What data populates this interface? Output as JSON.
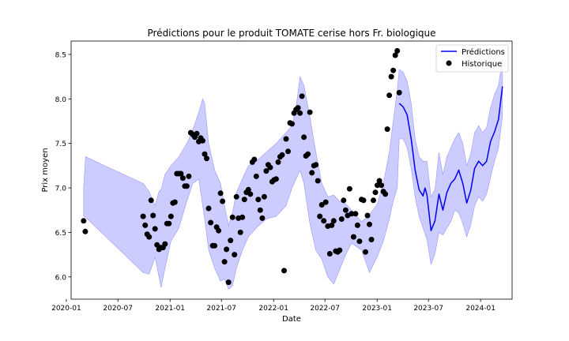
{
  "chart_data": {
    "type": "line",
    "title": "Prédictions pour le produit TOMATE cerise hors Fr. biologique",
    "xlabel": "Date",
    "ylabel": "Prix moyen",
    "xlim": [
      "2020-01-18",
      "2024-04-21"
    ],
    "ylim": [
      5.75,
      8.65
    ],
    "x_ticks": [
      "2020-01-01",
      "2020-07-01",
      "2021-01-01",
      "2021-07-01",
      "2022-01-01",
      "2022-07-01",
      "2023-01-01",
      "2023-07-01",
      "2024-01-01"
    ],
    "x_tick_labels": [
      "2020-01",
      "2020-07",
      "2021-01",
      "2021-07",
      "2022-01",
      "2022-07",
      "2023-01",
      "2023-07",
      "2024-01"
    ],
    "y_ticks": [
      6.0,
      6.5,
      7.0,
      7.5,
      8.0,
      8.5
    ],
    "y_tick_labels": [
      "6.0",
      "6.5",
      "7.0",
      "7.5",
      "8.0",
      "8.5"
    ],
    "grid": false,
    "legend": {
      "position": "top-right",
      "entries": [
        {
          "label": "Prédictions",
          "marker": "line",
          "color": "#0000ee"
        },
        {
          "label": "Historique",
          "marker": "dot",
          "color": "#000000"
        }
      ]
    },
    "colors": {
      "prediction": "#0000ee",
      "band": "#9999ff",
      "history": "#000000"
    },
    "series": [
      {
        "name": "Historique",
        "kind": "scatter",
        "x": [
          "2020-03-02",
          "2020-03-08",
          "2020-09-28",
          "2020-10-05",
          "2020-10-12",
          "2020-10-19",
          "2020-10-26",
          "2020-11-02",
          "2020-11-09",
          "2020-11-16",
          "2020-11-23",
          "2020-11-30",
          "2020-12-07",
          "2020-12-14",
          "2020-12-21",
          "2020-12-28",
          "2021-01-04",
          "2021-01-11",
          "2021-01-18",
          "2021-01-25",
          "2021-02-01",
          "2021-02-08",
          "2021-02-15",
          "2021-02-22",
          "2021-03-01",
          "2021-03-08",
          "2021-03-15",
          "2021-03-22",
          "2021-03-29",
          "2021-04-05",
          "2021-04-12",
          "2021-04-19",
          "2021-04-26",
          "2021-05-03",
          "2021-05-10",
          "2021-05-17",
          "2021-05-24",
          "2021-05-31",
          "2021-06-07",
          "2021-06-14",
          "2021-06-21",
          "2021-06-28",
          "2021-07-05",
          "2021-07-12",
          "2021-07-19",
          "2021-07-26",
          "2021-08-02",
          "2021-08-09",
          "2021-08-16",
          "2021-08-23",
          "2021-08-30",
          "2021-09-06",
          "2021-09-13",
          "2021-09-20",
          "2021-09-27",
          "2021-10-04",
          "2021-10-11",
          "2021-10-18",
          "2021-10-25",
          "2021-11-01",
          "2021-11-08",
          "2021-11-15",
          "2021-11-22",
          "2021-11-29",
          "2021-12-06",
          "2021-12-13",
          "2021-12-20",
          "2021-12-27",
          "2022-01-03",
          "2022-01-10",
          "2022-01-17",
          "2022-01-24",
          "2022-01-31",
          "2022-02-07",
          "2022-02-14",
          "2022-02-21",
          "2022-02-28",
          "2022-03-07",
          "2022-03-14",
          "2022-03-21",
          "2022-03-28",
          "2022-04-04",
          "2022-04-11",
          "2022-04-18",
          "2022-04-25",
          "2022-05-02",
          "2022-05-09",
          "2022-05-16",
          "2022-05-23",
          "2022-05-30",
          "2022-06-06",
          "2022-06-13",
          "2022-06-20",
          "2022-06-27",
          "2022-07-04",
          "2022-07-11",
          "2022-07-18",
          "2022-07-25",
          "2022-08-01",
          "2022-08-08",
          "2022-08-15",
          "2022-08-22",
          "2022-08-29",
          "2022-09-05",
          "2022-09-12",
          "2022-09-19",
          "2022-09-26",
          "2022-10-03",
          "2022-10-10",
          "2022-10-17",
          "2022-10-24",
          "2022-10-31",
          "2022-11-07",
          "2022-11-14",
          "2022-11-21",
          "2022-11-28",
          "2022-12-05",
          "2022-12-12",
          "2022-12-19",
          "2022-12-26",
          "2023-01-02",
          "2023-01-09",
          "2023-01-16",
          "2023-01-23",
          "2023-01-30",
          "2023-02-06",
          "2023-02-13",
          "2023-02-20",
          "2023-02-27",
          "2023-03-06",
          "2023-03-13",
          "2023-03-20"
        ],
        "y": [
          6.63,
          6.51,
          6.68,
          6.58,
          6.48,
          6.45,
          6.86,
          6.69,
          6.54,
          6.36,
          6.31,
          6.33,
          6.33,
          6.37,
          6.6,
          6.6,
          6.68,
          6.83,
          6.84,
          7.16,
          7.16,
          7.16,
          7.11,
          7.02,
          7.02,
          7.13,
          7.62,
          7.6,
          7.57,
          7.61,
          7.52,
          7.56,
          7.53,
          7.38,
          7.33,
          6.77,
          6.61,
          6.35,
          6.35,
          6.56,
          6.52,
          6.94,
          6.85,
          6.17,
          6.31,
          5.94,
          6.41,
          6.67,
          6.25,
          6.9,
          6.66,
          6.5,
          6.67,
          6.87,
          6.95,
          6.98,
          6.93,
          7.29,
          7.32,
          7.13,
          6.87,
          6.75,
          6.66,
          6.9,
          7.19,
          7.26,
          7.23,
          7.07,
          7.09,
          7.1,
          7.29,
          7.35,
          7.37,
          6.07,
          7.55,
          7.41,
          7.73,
          7.72,
          7.84,
          7.88,
          7.9,
          7.84,
          8.03,
          7.57,
          7.36,
          7.38,
          7.85,
          7.17,
          7.25,
          7.26,
          7.08,
          6.68,
          6.81,
          6.63,
          6.84,
          6.57,
          6.26,
          6.58,
          6.63,
          6.29,
          6.28,
          6.3,
          6.65,
          6.86,
          6.75,
          6.69,
          6.99,
          6.71,
          6.45,
          6.71,
          6.58,
          6.4,
          6.87,
          6.86,
          6.28,
          6.69,
          6.59,
          6.42,
          6.86,
          6.95,
          7.03,
          7.08,
          7.03,
          6.96,
          6.93,
          7.66,
          8.04,
          8.25,
          8.32,
          8.49,
          8.54,
          8.07
        ]
      },
      {
        "name": "Prédictions",
        "kind": "line",
        "x": [
          "2023-03-20",
          "2023-04-03",
          "2023-04-17",
          "2023-05-01",
          "2023-05-15",
          "2023-05-29",
          "2023-06-12",
          "2023-06-19",
          "2023-06-26",
          "2023-07-10",
          "2023-07-24",
          "2023-08-07",
          "2023-08-21",
          "2023-09-04",
          "2023-09-18",
          "2023-10-02",
          "2023-10-16",
          "2023-10-30",
          "2023-11-13",
          "2023-11-27",
          "2023-12-11",
          "2023-12-25",
          "2024-01-08",
          "2024-01-22",
          "2024-02-05",
          "2024-02-19",
          "2024-03-04",
          "2024-03-18"
        ],
        "y": [
          7.95,
          7.91,
          7.82,
          7.55,
          7.2,
          6.98,
          6.91,
          7.0,
          6.92,
          6.52,
          6.63,
          6.93,
          6.75,
          6.95,
          7.05,
          7.1,
          7.2,
          7.05,
          6.83,
          6.97,
          7.22,
          7.3,
          7.25,
          7.3,
          7.52,
          7.63,
          7.77,
          8.14
        ],
        "band_x": [
          "2020-03-02",
          "2020-03-09",
          "2020-09-28",
          "2020-10-19",
          "2020-11-09",
          "2020-11-23",
          "2020-11-30",
          "2020-12-14",
          "2021-01-04",
          "2021-02-01",
          "2021-03-01",
          "2021-03-22",
          "2021-04-12",
          "2021-04-26",
          "2021-05-03",
          "2021-05-17",
          "2021-06-07",
          "2021-06-28",
          "2021-07-12",
          "2021-07-26",
          "2021-08-09",
          "2021-08-23",
          "2021-09-13",
          "2021-10-04",
          "2021-11-01",
          "2021-12-06",
          "2022-01-10",
          "2022-02-14",
          "2022-03-07",
          "2022-03-21",
          "2022-04-04",
          "2022-04-18",
          "2022-05-09",
          "2022-05-30",
          "2022-06-20",
          "2022-07-11",
          "2022-08-01",
          "2022-08-22",
          "2022-09-12",
          "2022-10-03",
          "2022-11-07",
          "2022-12-05",
          "2023-01-02",
          "2023-01-23",
          "2023-02-13",
          "2023-02-27",
          "2023-03-13",
          "2023-03-20",
          "2023-04-03",
          "2023-04-17",
          "2023-05-01",
          "2023-05-15",
          "2023-05-29",
          "2023-06-12",
          "2023-06-26",
          "2023-07-10",
          "2023-07-24",
          "2023-08-07",
          "2023-08-21",
          "2023-09-04",
          "2023-09-18",
          "2023-10-02",
          "2023-10-16",
          "2023-10-30",
          "2023-11-13",
          "2023-11-27",
          "2023-12-11",
          "2023-12-25",
          "2024-01-08",
          "2024-01-22",
          "2024-02-05",
          "2024-02-19",
          "2024-03-04",
          "2024-03-18"
        ],
        "band_lower": [
          6.68,
          6.67,
          6.05,
          6.03,
          6.22,
          6.0,
          5.88,
          6.1,
          6.4,
          6.55,
          6.85,
          7.05,
          7.1,
          6.8,
          6.65,
          6.3,
          6.1,
          5.95,
          5.98,
          5.86,
          5.9,
          6.1,
          6.3,
          6.45,
          6.55,
          6.65,
          6.68,
          6.8,
          7.0,
          7.1,
          7.2,
          7.05,
          6.6,
          6.3,
          6.2,
          6.0,
          5.92,
          6.08,
          6.25,
          6.38,
          6.3,
          6.05,
          6.23,
          6.4,
          6.65,
          6.85,
          7.0,
          7.55,
          7.55,
          7.45,
          7.22,
          6.9,
          6.68,
          6.55,
          6.42,
          6.14,
          6.26,
          6.5,
          6.47,
          6.55,
          6.62,
          6.75,
          6.72,
          6.6,
          6.45,
          6.58,
          6.8,
          6.9,
          6.85,
          6.93,
          7.12,
          7.3,
          7.45,
          7.8
        ],
        "band_upper": [
          7.0,
          7.35,
          7.05,
          6.96,
          6.8,
          6.96,
          6.98,
          7.15,
          7.25,
          7.35,
          7.5,
          7.65,
          7.85,
          8.0,
          7.95,
          7.5,
          7.2,
          7.05,
          6.8,
          6.58,
          6.72,
          6.95,
          7.1,
          7.25,
          7.3,
          7.4,
          7.5,
          7.62,
          7.7,
          7.9,
          8.25,
          8.15,
          7.8,
          7.4,
          7.05,
          6.9,
          6.92,
          6.85,
          6.82,
          6.75,
          6.62,
          6.7,
          6.82,
          7.05,
          7.4,
          7.75,
          8.1,
          8.33,
          8.3,
          8.2,
          7.95,
          7.55,
          7.35,
          7.3,
          7.3,
          6.9,
          6.98,
          7.4,
          7.15,
          7.35,
          7.45,
          7.55,
          7.62,
          7.5,
          7.25,
          7.38,
          7.62,
          7.7,
          7.62,
          7.68,
          7.9,
          8.05,
          8.15,
          8.45
        ]
      }
    ]
  }
}
